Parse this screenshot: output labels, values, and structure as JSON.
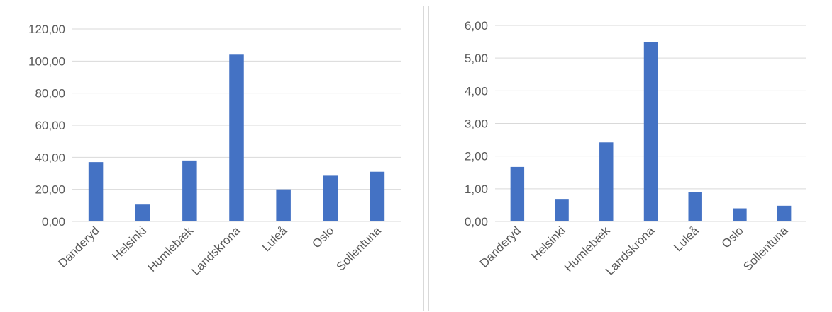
{
  "chart_data": [
    {
      "type": "bar",
      "categories": [
        "Danderyd",
        "Helsinki",
        "Humlebæk",
        "Landskrona",
        "Luleå",
        "Oslo",
        "Sollentuna"
      ],
      "values": [
        37.0,
        10.5,
        38.0,
        104.0,
        20.0,
        28.5,
        31.0
      ],
      "yticks": [
        "0,00",
        "20,00",
        "40,00",
        "60,00",
        "80,00",
        "100,00",
        "120,00"
      ],
      "ylim": [
        0,
        120
      ],
      "grid": true,
      "bar_color": "#4472c4"
    },
    {
      "type": "bar",
      "categories": [
        "Danderyd",
        "Helsinki",
        "Humlebæk",
        "Landskrona",
        "Luleå",
        "Oslo",
        "Sollentuna"
      ],
      "values": [
        1.67,
        0.69,
        2.42,
        5.48,
        0.89,
        0.4,
        0.48
      ],
      "yticks": [
        "0,00",
        "1,00",
        "2,00",
        "3,00",
        "4,00",
        "5,00",
        "6,00"
      ],
      "ylim": [
        0,
        6
      ],
      "grid": true,
      "bar_color": "#4472c4"
    }
  ]
}
